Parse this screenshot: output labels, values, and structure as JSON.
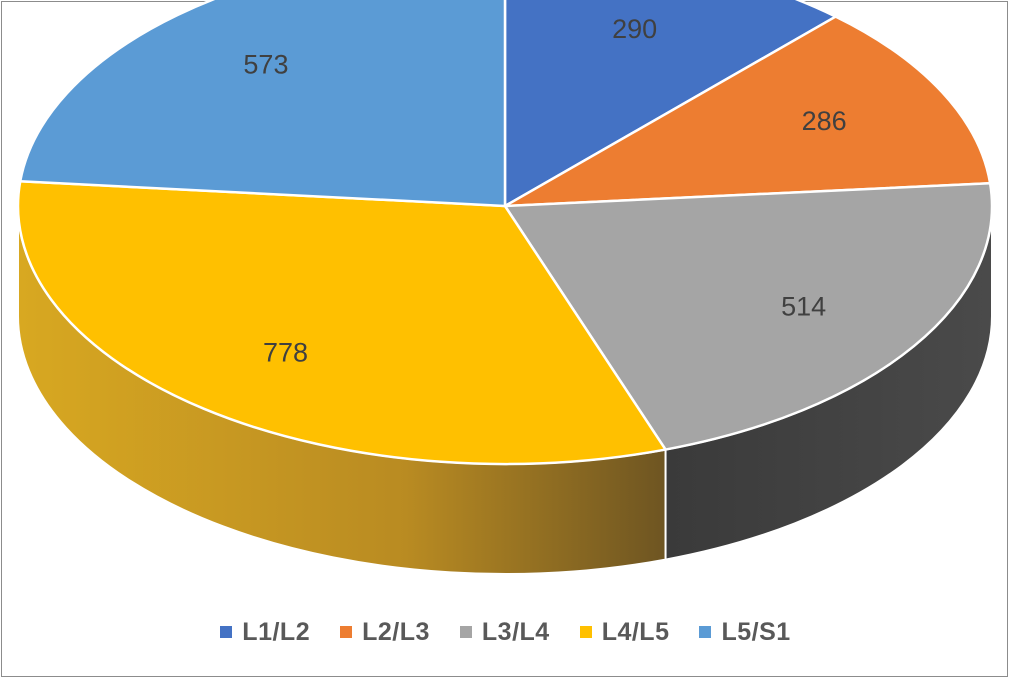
{
  "chart_data": {
    "type": "pie",
    "style": "3d",
    "categories": [
      "L1/L2",
      "L2/L3",
      "L3/L4",
      "L4/L5",
      "L5/S1"
    ],
    "values": [
      290,
      286,
      514,
      778,
      573
    ],
    "colors": [
      "#4472c4",
      "#ed7d31",
      "#a5a5a5",
      "#ffc000",
      "#5b9bd5"
    ],
    "side_colors": [
      "#2f5597",
      "#ae5a21",
      "#404040",
      "#9e7a1e",
      "#41719c"
    ],
    "data_labels": [
      "290",
      "286",
      "514",
      "778",
      "573"
    ],
    "legend_position": "bottom",
    "title": ""
  },
  "legend": {
    "items": [
      {
        "label": "L1/L2",
        "color": "#4472c4"
      },
      {
        "label": "L2/L3",
        "color": "#ed7d31"
      },
      {
        "label": "L3/L4",
        "color": "#a5a5a5"
      },
      {
        "label": "L4/L5",
        "color": "#ffc000"
      },
      {
        "label": "L5/S1",
        "color": "#5b9bd5"
      }
    ]
  }
}
